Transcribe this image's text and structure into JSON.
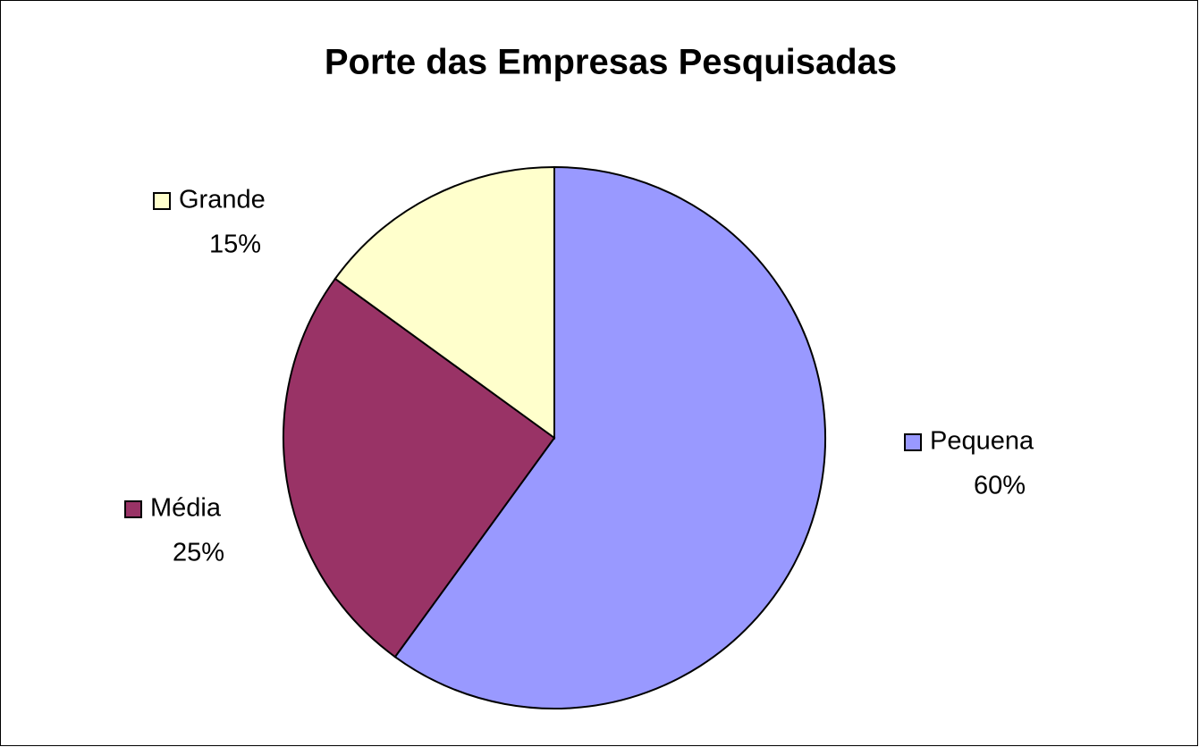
{
  "chart_data": {
    "type": "pie",
    "title": "Porte das Empresas Pesquisadas",
    "categories": [
      "Pequena",
      "Média",
      "Grande"
    ],
    "values": [
      60,
      25,
      15
    ],
    "value_labels": [
      "60%",
      "25%",
      "15%"
    ],
    "colors": [
      "#9999ff",
      "#993366",
      "#ffffcc"
    ]
  }
}
